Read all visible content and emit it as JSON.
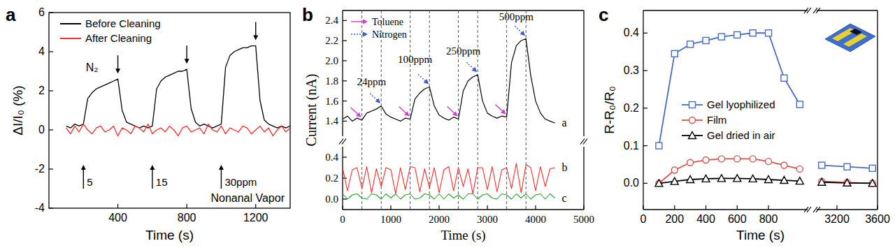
{
  "chart_data": [
    {
      "type": "line",
      "title": "a",
      "x_label": "Time (s)",
      "y_label": "ΔI/I₀ (%)",
      "xlim": [
        0,
        1400
      ],
      "xticks": [
        400,
        800,
        1200
      ],
      "ylim": [
        -4,
        6
      ],
      "yticks": [
        -4,
        -2,
        0,
        2,
        4,
        6
      ],
      "legend": "upper left",
      "x": [
        100,
        125,
        150,
        175,
        200,
        225,
        250,
        275,
        300,
        325,
        350,
        375,
        400,
        425,
        450,
        475,
        500,
        525,
        550,
        575,
        600,
        625,
        650,
        675,
        700,
        725,
        750,
        775,
        800,
        825,
        850,
        875,
        900,
        925,
        950,
        975,
        1000,
        1025,
        1050,
        1075,
        1100,
        1125,
        1150,
        1175,
        1200,
        1225,
        1250,
        1275,
        1300,
        1325,
        1350,
        1375,
        1400
      ],
      "series": [
        {
          "name": "Before Cleaning",
          "color": "#000000",
          "values": [
            0.2,
            0.1,
            0.3,
            0.2,
            0.3,
            1.6,
            1.9,
            2.1,
            2.2,
            2.3,
            2.4,
            2.5,
            2.6,
            1.0,
            0.4,
            0.3,
            0.2,
            0.1,
            0.2,
            0.1,
            0.2,
            2.1,
            2.5,
            2.7,
            2.8,
            2.9,
            3.0,
            3.0,
            3.1,
            1.1,
            0.4,
            0.2,
            0.3,
            0.2,
            0.1,
            0.2,
            0.3,
            3.2,
            3.8,
            4.0,
            4.1,
            4.2,
            4.2,
            4.3,
            4.3,
            1.5,
            0.5,
            0.3,
            0.2,
            0.1,
            0.2,
            0.1,
            0.2
          ]
        },
        {
          "name": "After Cleaning",
          "color": "#ff2a2a",
          "values": [
            0.1,
            -0.2,
            0.2,
            -0.1,
            0.3,
            0.0,
            -0.2,
            0.1,
            0.2,
            -0.1,
            0.0,
            0.2,
            -0.3,
            0.1,
            0.0,
            -0.2,
            0.2,
            0.1,
            -0.1,
            0.3,
            -0.2,
            0.0,
            0.1,
            -0.1,
            0.2,
            0.0,
            -0.3,
            0.1,
            0.2,
            -0.1,
            0.0,
            0.1,
            -0.2,
            0.3,
            0.0,
            -0.1,
            0.2,
            -0.2,
            0.1,
            0.0,
            -0.1,
            0.2,
            0.1,
            -0.2,
            0.0,
            0.2,
            -0.1,
            0.1,
            -0.3,
            0.0,
            0.2,
            -0.1,
            0.1
          ]
        }
      ],
      "vapor_on": [
        {
          "x": 200,
          "label": "5"
        },
        {
          "x": 600,
          "label": "15"
        },
        {
          "x": 1000,
          "label": "30ppm"
        }
      ],
      "vapor_off": [
        400,
        800,
        1200
      ],
      "annotations": [
        {
          "text": "N₂",
          "x": 250,
          "y": 3.0
        },
        {
          "text": "Nonanal Vapor"
        }
      ]
    },
    {
      "type": "line",
      "title": "b",
      "y_label": "Current (nA)",
      "xlim": [
        0,
        5000
      ],
      "ylim": [
        1.25,
        2.5
      ],
      "yticks": [
        1.4,
        1.6,
        1.8,
        {
          "value": 2,
          "label": "2.0"
        },
        2.2,
        2.4
      ],
      "tick_labels": "y",
      "legend": "upper left",
      "x": [
        0,
        100,
        200,
        300,
        400,
        500,
        600,
        700,
        800,
        900,
        1000,
        1100,
        1200,
        1300,
        1400,
        1500,
        1600,
        1700,
        1800,
        1900,
        2000,
        2100,
        2200,
        2300,
        2400,
        2500,
        2600,
        2700,
        2800,
        2900,
        3000,
        3100,
        3200,
        3300,
        3400,
        3500,
        3600,
        3700,
        3800,
        3900,
        4000,
        4100,
        4200,
        4300,
        4400
      ],
      "series": [
        {
          "name": "a",
          "color": "#000000",
          "values": [
            1.42,
            1.45,
            1.4,
            1.43,
            1.41,
            1.48,
            1.5,
            1.52,
            1.55,
            1.47,
            1.44,
            1.42,
            1.4,
            1.43,
            1.42,
            1.62,
            1.68,
            1.72,
            1.74,
            1.55,
            1.46,
            1.43,
            1.41,
            1.44,
            1.42,
            1.7,
            1.8,
            1.84,
            1.86,
            1.6,
            1.48,
            1.45,
            1.43,
            1.45,
            1.44,
            1.98,
            2.15,
            2.2,
            2.22,
            1.85,
            1.6,
            1.48,
            1.42,
            1.4,
            1.38
          ]
        }
      ],
      "events": [
        {
          "name": "Toluene",
          "color": "#d23cd2",
          "line_style": "solid",
          "x": [
            400,
            1400,
            2400,
            3400
          ]
        },
        {
          "name": "Nitrogen",
          "color": "#3c5ad2",
          "line_style": "dotted",
          "x": [
            800,
            1800,
            2800,
            3800
          ]
        }
      ],
      "annotations": [
        {
          "text": "24ppm",
          "x": 600,
          "y": 1.76
        },
        {
          "text": "100ppm",
          "x": 1500,
          "y": 1.98
        },
        {
          "text": "250ppm",
          "x": 2500,
          "y": 2.06
        },
        {
          "text": "500ppm",
          "x": 3600,
          "y": 2.4
        }
      ]
    },
    {
      "type": "line",
      "x_label": "Time (s)",
      "xlim": [
        0,
        5000
      ],
      "xticks": [
        0,
        1000,
        2000,
        3000,
        4000,
        5000
      ],
      "ylim": [
        -0.1,
        0.5
      ],
      "yticks": [
        {
          "value": 0,
          "label": "0.0"
        },
        0.2,
        0.4
      ],
      "x": [
        0,
        100,
        200,
        300,
        400,
        500,
        600,
        700,
        800,
        900,
        1000,
        1100,
        1200,
        1300,
        1400,
        1500,
        1600,
        1700,
        1800,
        1900,
        2000,
        2100,
        2200,
        2300,
        2400,
        2500,
        2600,
        2700,
        2800,
        2900,
        3000,
        3100,
        3200,
        3300,
        3400,
        3500,
        3600,
        3700,
        3800,
        3900,
        4000,
        4100,
        4200,
        4300,
        4400
      ],
      "series": [
        {
          "name": "b",
          "color": "#ff2a2a",
          "values": [
            0.3,
            0.08,
            0.28,
            0.3,
            0.1,
            0.31,
            0.06,
            0.29,
            0.12,
            0.3,
            0.28,
            0.05,
            0.3,
            0.09,
            0.31,
            0.3,
            0.07,
            0.29,
            0.11,
            0.3,
            0.06,
            0.28,
            0.31,
            0.08,
            0.3,
            0.12,
            0.29,
            0.05,
            0.3,
            0.3,
            0.09,
            0.31,
            0.07,
            0.28,
            0.3,
            0.1,
            0.34,
            0.06,
            0.33,
            0.3,
            0.08,
            0.31,
            0.12,
            0.29,
            0.3
          ]
        },
        {
          "name": "c",
          "color": "#2ca02c",
          "values": [
            0.05,
            0.0,
            0.04,
            0.05,
            0.01,
            0.0,
            0.05,
            0.04,
            0.0,
            0.05,
            0.01,
            0.05,
            0.0,
            0.04,
            0.05,
            0.0,
            0.01,
            0.05,
            0.04,
            0.0,
            0.05,
            0.0,
            0.05,
            0.01,
            0.04,
            0.0,
            0.05,
            0.05,
            0.0,
            0.04,
            0.05,
            0.01,
            0.0,
            0.05,
            0.04,
            0.0,
            0.05,
            0.01,
            0.05,
            0.0,
            0.04,
            0.05,
            0.0,
            0.05,
            0.01
          ]
        }
      ]
    },
    {
      "type": "line",
      "title": "c",
      "x_label": "Time (s)",
      "y_label": "R-R₀/R₀",
      "xlim": [
        0,
        1050
      ],
      "xticks": [
        0,
        200,
        400,
        600,
        800
      ],
      "ylim": [
        -0.07,
        0.46
      ],
      "yticks": [
        {
          "value": 0,
          "label": "0.0"
        },
        0.1,
        0.2,
        0.3,
        0.4
      ],
      "legend": "center left",
      "x": [
        100,
        200,
        300,
        400,
        500,
        600,
        700,
        800,
        900,
        1000
      ],
      "series": [
        {
          "name": "Gel lyophilized",
          "color": "#4a6bc5",
          "marker": "square",
          "values": [
            0.1,
            0.345,
            0.37,
            0.38,
            0.39,
            0.395,
            0.4,
            0.4,
            0.28,
            0.21
          ]
        },
        {
          "name": "Film",
          "color": "#e0504a",
          "marker": "circle",
          "values": [
            0.0,
            0.035,
            0.055,
            0.062,
            0.065,
            0.065,
            0.065,
            0.058,
            0.048,
            0.038
          ]
        },
        {
          "name": "Gel dried in air",
          "color": "#000000",
          "marker": "triangle",
          "values": [
            0.0,
            0.005,
            0.01,
            0.012,
            0.013,
            0.013,
            0.012,
            0.01,
            0.008,
            0.006
          ]
        }
      ]
    },
    {
      "type": "line",
      "xlim": [
        3000,
        3600
      ],
      "xticks": [
        3200,
        3600
      ],
      "ylim": [
        -0.07,
        0.46
      ],
      "tick_labels": "x",
      "x": [
        3050,
        3300,
        3550
      ],
      "series": [
        {
          "color": "#4a6bc5",
          "marker": "square",
          "values": [
            0.048,
            0.044,
            0.04
          ]
        },
        {
          "color": "#e0504a",
          "marker": "circle",
          "values": [
            0.005,
            0.002,
            0.0
          ]
        },
        {
          "color": "#000000",
          "marker": "triangle",
          "values": [
            0.003,
            0.001,
            0.0
          ]
        }
      ]
    }
  ]
}
